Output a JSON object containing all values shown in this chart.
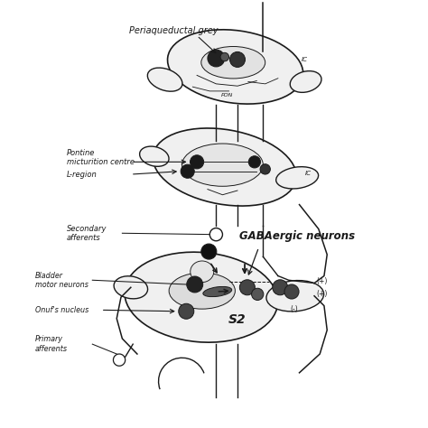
{
  "bg_color": "#ffffff",
  "line_color": "#1a1a1a",
  "labels": {
    "periaqueductal": "Periaqueductal grey",
    "pontine": "Pontine\nmicturition centre",
    "l_region": "L-region",
    "secondary": "Secondary\nafferents",
    "gabaergic": "GABAergic neurons",
    "bladder": "Bladder\nmotor neurons",
    "onuf": "Onuf's nucleus",
    "primary": "Primary\nafferents",
    "s2": "S2",
    "ic_top": "IC",
    "ic_mid": "IC",
    "plus1": "(+)",
    "plus2": "(+)",
    "minus": "(-)",
    "pons": "PON"
  }
}
